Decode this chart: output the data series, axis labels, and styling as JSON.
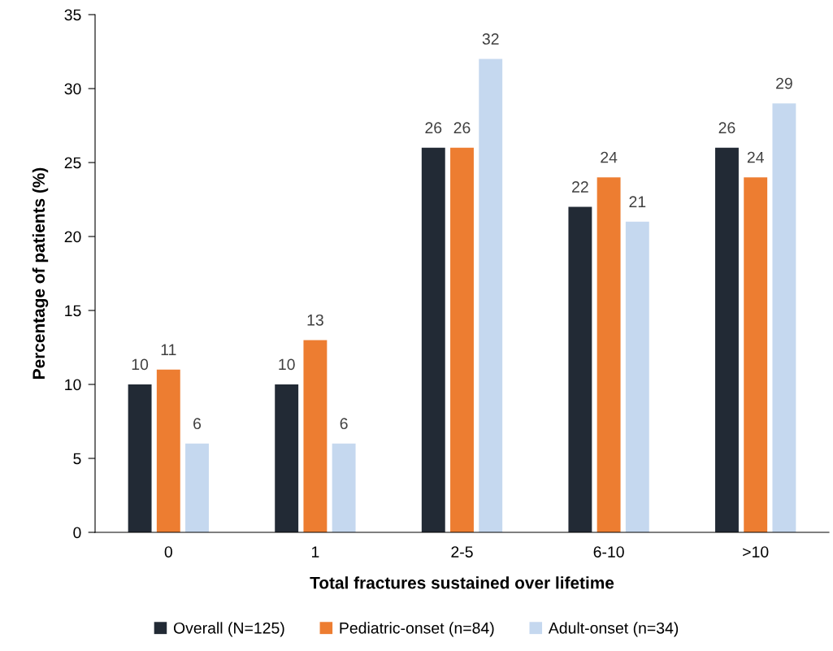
{
  "chart_data": {
    "type": "bar",
    "xlabel": "Total fractures sustained over lifetime",
    "ylabel": "Percentage of patients (%)",
    "categories": [
      "0",
      "1",
      "2-5",
      "6-10",
      ">10"
    ],
    "series": [
      {
        "name": "Overall (N=125)",
        "color": "#222a35",
        "values": [
          10,
          10,
          26,
          22,
          26
        ]
      },
      {
        "name": "Pediatric-onset (n=84)",
        "color": "#ed7d31",
        "values": [
          11,
          13,
          26,
          24,
          24
        ]
      },
      {
        "name": "Adult-onset (n=34)",
        "color": "#c5d8ef",
        "values": [
          6,
          6,
          32,
          21,
          29
        ]
      }
    ],
    "ylim": [
      0,
      35
    ],
    "yticks": [
      0,
      5,
      10,
      15,
      20,
      25,
      30,
      35
    ],
    "grid": false,
    "legend": "bottom",
    "data_labels": true
  }
}
